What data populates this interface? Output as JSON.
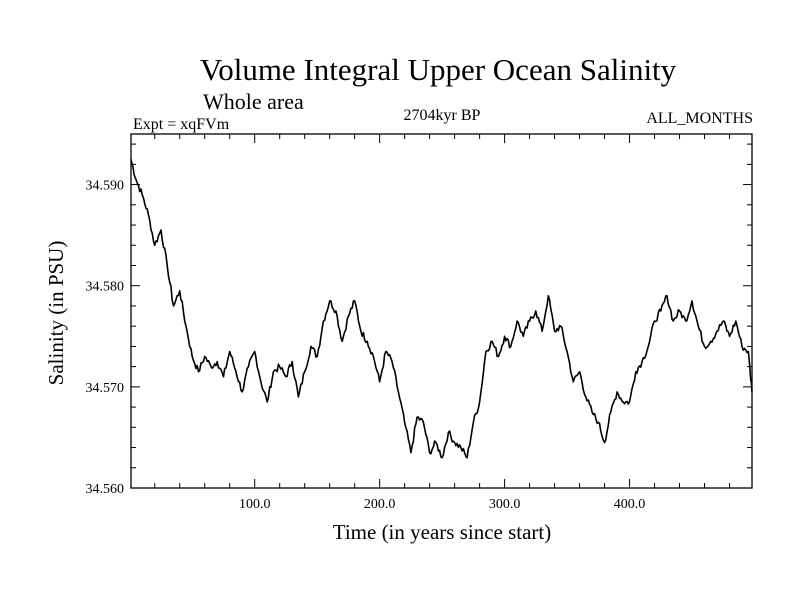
{
  "header": {
    "title": "Volume Integral Upper Ocean Salinity",
    "subtitle": "Whole area",
    "experiment": "Expt = xqFVm",
    "period": "2704kyr BP",
    "months": "ALL_MONTHS"
  },
  "chart_data": {
    "type": "line",
    "title": "Volume Integral Upper Ocean Salinity",
    "xlabel": "Time (in years since start)",
    "ylabel": "Salinity (in PSU)",
    "xlim": [
      1,
      498
    ],
    "ylim": [
      34.56,
      34.595
    ],
    "x_ticks": [
      100,
      200,
      300,
      400
    ],
    "x_tick_labels": [
      "100.0",
      "200.0",
      "300.0",
      "400.0"
    ],
    "y_ticks": [
      34.56,
      34.57,
      34.58,
      34.59
    ],
    "y_tick_labels": [
      "34.560",
      "34.570",
      "34.580",
      "34.590"
    ],
    "grid": false,
    "series": [
      {
        "name": "Salinity",
        "color": "#000000",
        "x": [
          1,
          5,
          10,
          15,
          20,
          25,
          30,
          35,
          40,
          45,
          50,
          55,
          60,
          65,
          70,
          75,
          80,
          85,
          90,
          95,
          100,
          105,
          110,
          115,
          120,
          125,
          130,
          135,
          140,
          145,
          150,
          155,
          160,
          165,
          170,
          175,
          180,
          185,
          190,
          195,
          200,
          205,
          210,
          215,
          220,
          225,
          230,
          235,
          240,
          245,
          250,
          255,
          260,
          265,
          270,
          275,
          280,
          285,
          290,
          295,
          300,
          305,
          310,
          315,
          320,
          325,
          330,
          335,
          340,
          345,
          350,
          355,
          360,
          365,
          370,
          375,
          380,
          385,
          390,
          395,
          400,
          405,
          410,
          415,
          420,
          425,
          430,
          435,
          440,
          445,
          450,
          455,
          460,
          465,
          470,
          475,
          480,
          485,
          490,
          495,
          498
        ],
        "values": [
          34.5925,
          34.5905,
          34.589,
          34.587,
          34.584,
          34.5855,
          34.582,
          34.578,
          34.5795,
          34.576,
          34.573,
          34.5715,
          34.573,
          34.572,
          34.5725,
          34.571,
          34.5735,
          34.5715,
          34.5695,
          34.572,
          34.5735,
          34.5705,
          34.5685,
          34.5715,
          34.572,
          34.571,
          34.5725,
          34.569,
          34.5715,
          34.574,
          34.573,
          34.5765,
          34.5785,
          34.5775,
          34.5745,
          34.577,
          34.5785,
          34.5755,
          34.5745,
          34.573,
          34.5705,
          34.5735,
          34.5725,
          34.5695,
          34.5665,
          34.5635,
          34.567,
          34.5665,
          34.5635,
          34.5645,
          34.563,
          34.5655,
          34.5645,
          34.564,
          34.563,
          34.5665,
          34.5685,
          34.5735,
          34.5745,
          34.573,
          34.575,
          34.574,
          34.5765,
          34.575,
          34.5765,
          34.5775,
          34.5755,
          34.579,
          34.5755,
          34.576,
          34.5735,
          34.5705,
          34.5715,
          34.569,
          34.5675,
          34.5665,
          34.5645,
          34.5675,
          34.5695,
          34.5685,
          34.5685,
          34.5715,
          34.5725,
          34.574,
          34.5765,
          34.5775,
          34.579,
          34.5765,
          34.5775,
          34.5765,
          34.5785,
          34.576,
          34.574,
          34.5745,
          34.5755,
          34.5765,
          34.575,
          34.5765,
          34.574,
          34.5735,
          34.5695
        ]
      }
    ]
  }
}
